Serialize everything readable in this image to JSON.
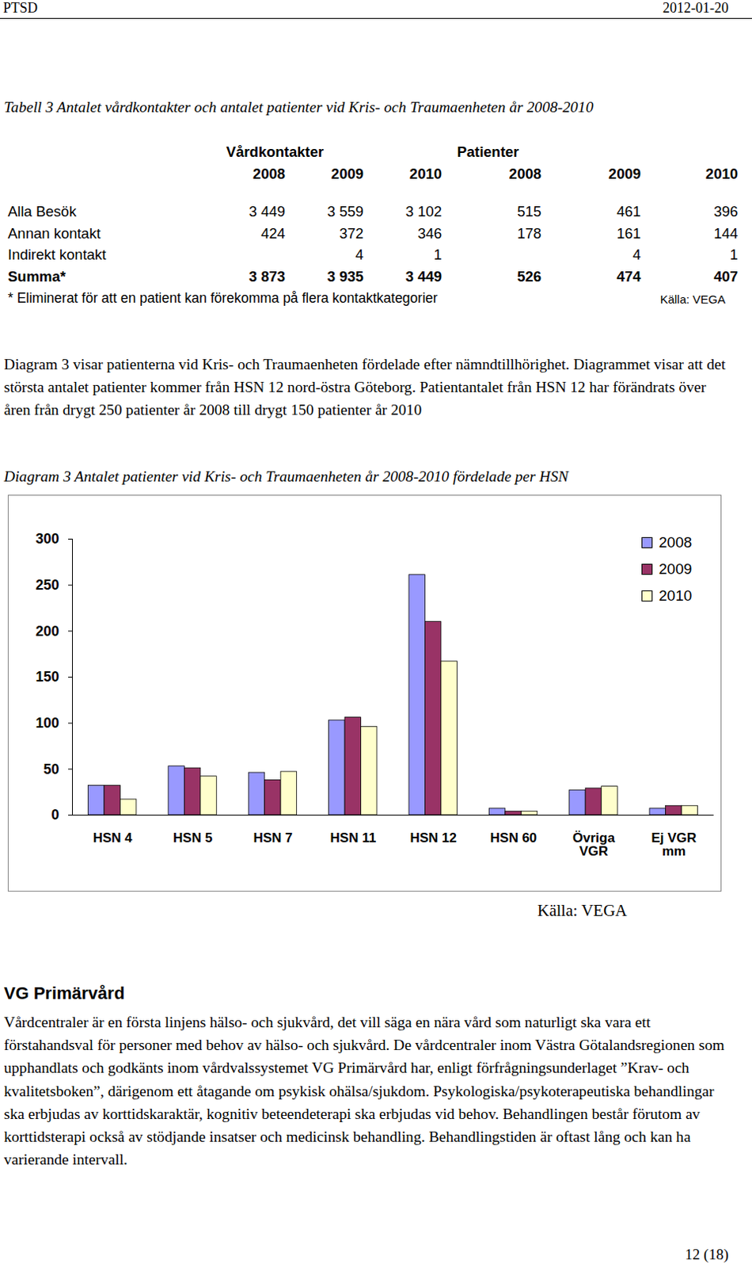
{
  "header": {
    "left": "PTSD",
    "right": "2012-01-20"
  },
  "table": {
    "caption": "Tabell 3 Antalet vårdkontakter och antalet patienter vid Kris- och Traumaenheten år 2008-2010",
    "group_headers": [
      "Vårdkontakter",
      "Patienter"
    ],
    "years": [
      "2008",
      "2009",
      "2010",
      "2008",
      "2009",
      "2010"
    ],
    "rows": [
      {
        "label": "Alla Besök",
        "cells": [
          "3 449",
          "3 559",
          "3 102",
          "515",
          "461",
          "396"
        ]
      },
      {
        "label": "Annan kontakt",
        "cells": [
          "424",
          "372",
          "346",
          "178",
          "161",
          "144"
        ]
      },
      {
        "label": "Indirekt kontakt",
        "cells": [
          null,
          "4",
          "1",
          null,
          "4",
          "1"
        ]
      },
      {
        "label": "Summa*",
        "cells": [
          "3 873",
          "3 935",
          "3 449",
          "526",
          "474",
          "407"
        ]
      }
    ],
    "note": "* Eliminerat för att en patient kan förekomma på flera kontaktkategorier",
    "source": "Källa: VEGA"
  },
  "paragraphs": [
    "Diagram 3 visar patienterna vid Kris- och Traumaenheten fördelade efter nämndtillhörighet. Diagrammet visar att det största antalet patienter kommer från HSN 12 nord-östra Göteborg. Patientantalet från HSN 12 har förändrats över åren från drygt 250 patienter år 2008 till drygt 150 patienter år 2010"
  ],
  "chart_caption": "Diagram 3 Antalet patienter vid Kris- och Traumaenheten år 2008-2010 fördelade per HSN",
  "chart_data": {
    "type": "bar",
    "categories": [
      "HSN 4",
      "HSN 5",
      "HSN 7",
      "HSN 11",
      "HSN 12",
      "HSN 60",
      "Övriga VGR",
      "Ej VGR mm"
    ],
    "series": [
      {
        "name": "2008",
        "color": "#9999ff",
        "values": [
          32,
          53,
          46,
          103,
          261,
          7,
          27,
          7
        ]
      },
      {
        "name": "2009",
        "color": "#993366",
        "values": [
          32,
          51,
          38,
          106,
          210,
          4,
          29,
          10
        ]
      },
      {
        "name": "2010",
        "color": "#ffffcc",
        "values": [
          17,
          42,
          47,
          96,
          167,
          4,
          31,
          10
        ]
      }
    ],
    "ylim": [
      0,
      300
    ],
    "yticks": [
      0,
      50,
      100,
      150,
      200,
      250,
      300
    ],
    "grid": false,
    "legend": "top-right"
  },
  "chart_source": "Källa: VEGA",
  "section": {
    "heading": "VG Primärvård",
    "text": "Vårdcentraler är en första linjens hälso- och sjukvård, det vill säga en nära vård som naturligt ska vara ett förstahandsval för personer med behov av hälso- och sjukvård. De vårdcentraler inom Västra Götalandsregionen som upphandlats och godkänts inom vårdvalssystemet VG Primärvård har, enligt förfrågningsunderlaget ”Krav- och kvalitetsboken”, därigenom ett åtagande om psykisk ohälsa/sjukdom. Psykologiska/psykoterapeutiska behandlingar ska erbjudas av korttidskaraktär, kognitiv beteendeterapi ska erbjudas vid behov. Behandlingen består förutom av korttidsterapi också av stödjande insatser och medicinsk behandling. Behandlingstiden är oftast lång och kan ha varierande intervall."
  },
  "footer": {
    "page": "12 (18)"
  }
}
